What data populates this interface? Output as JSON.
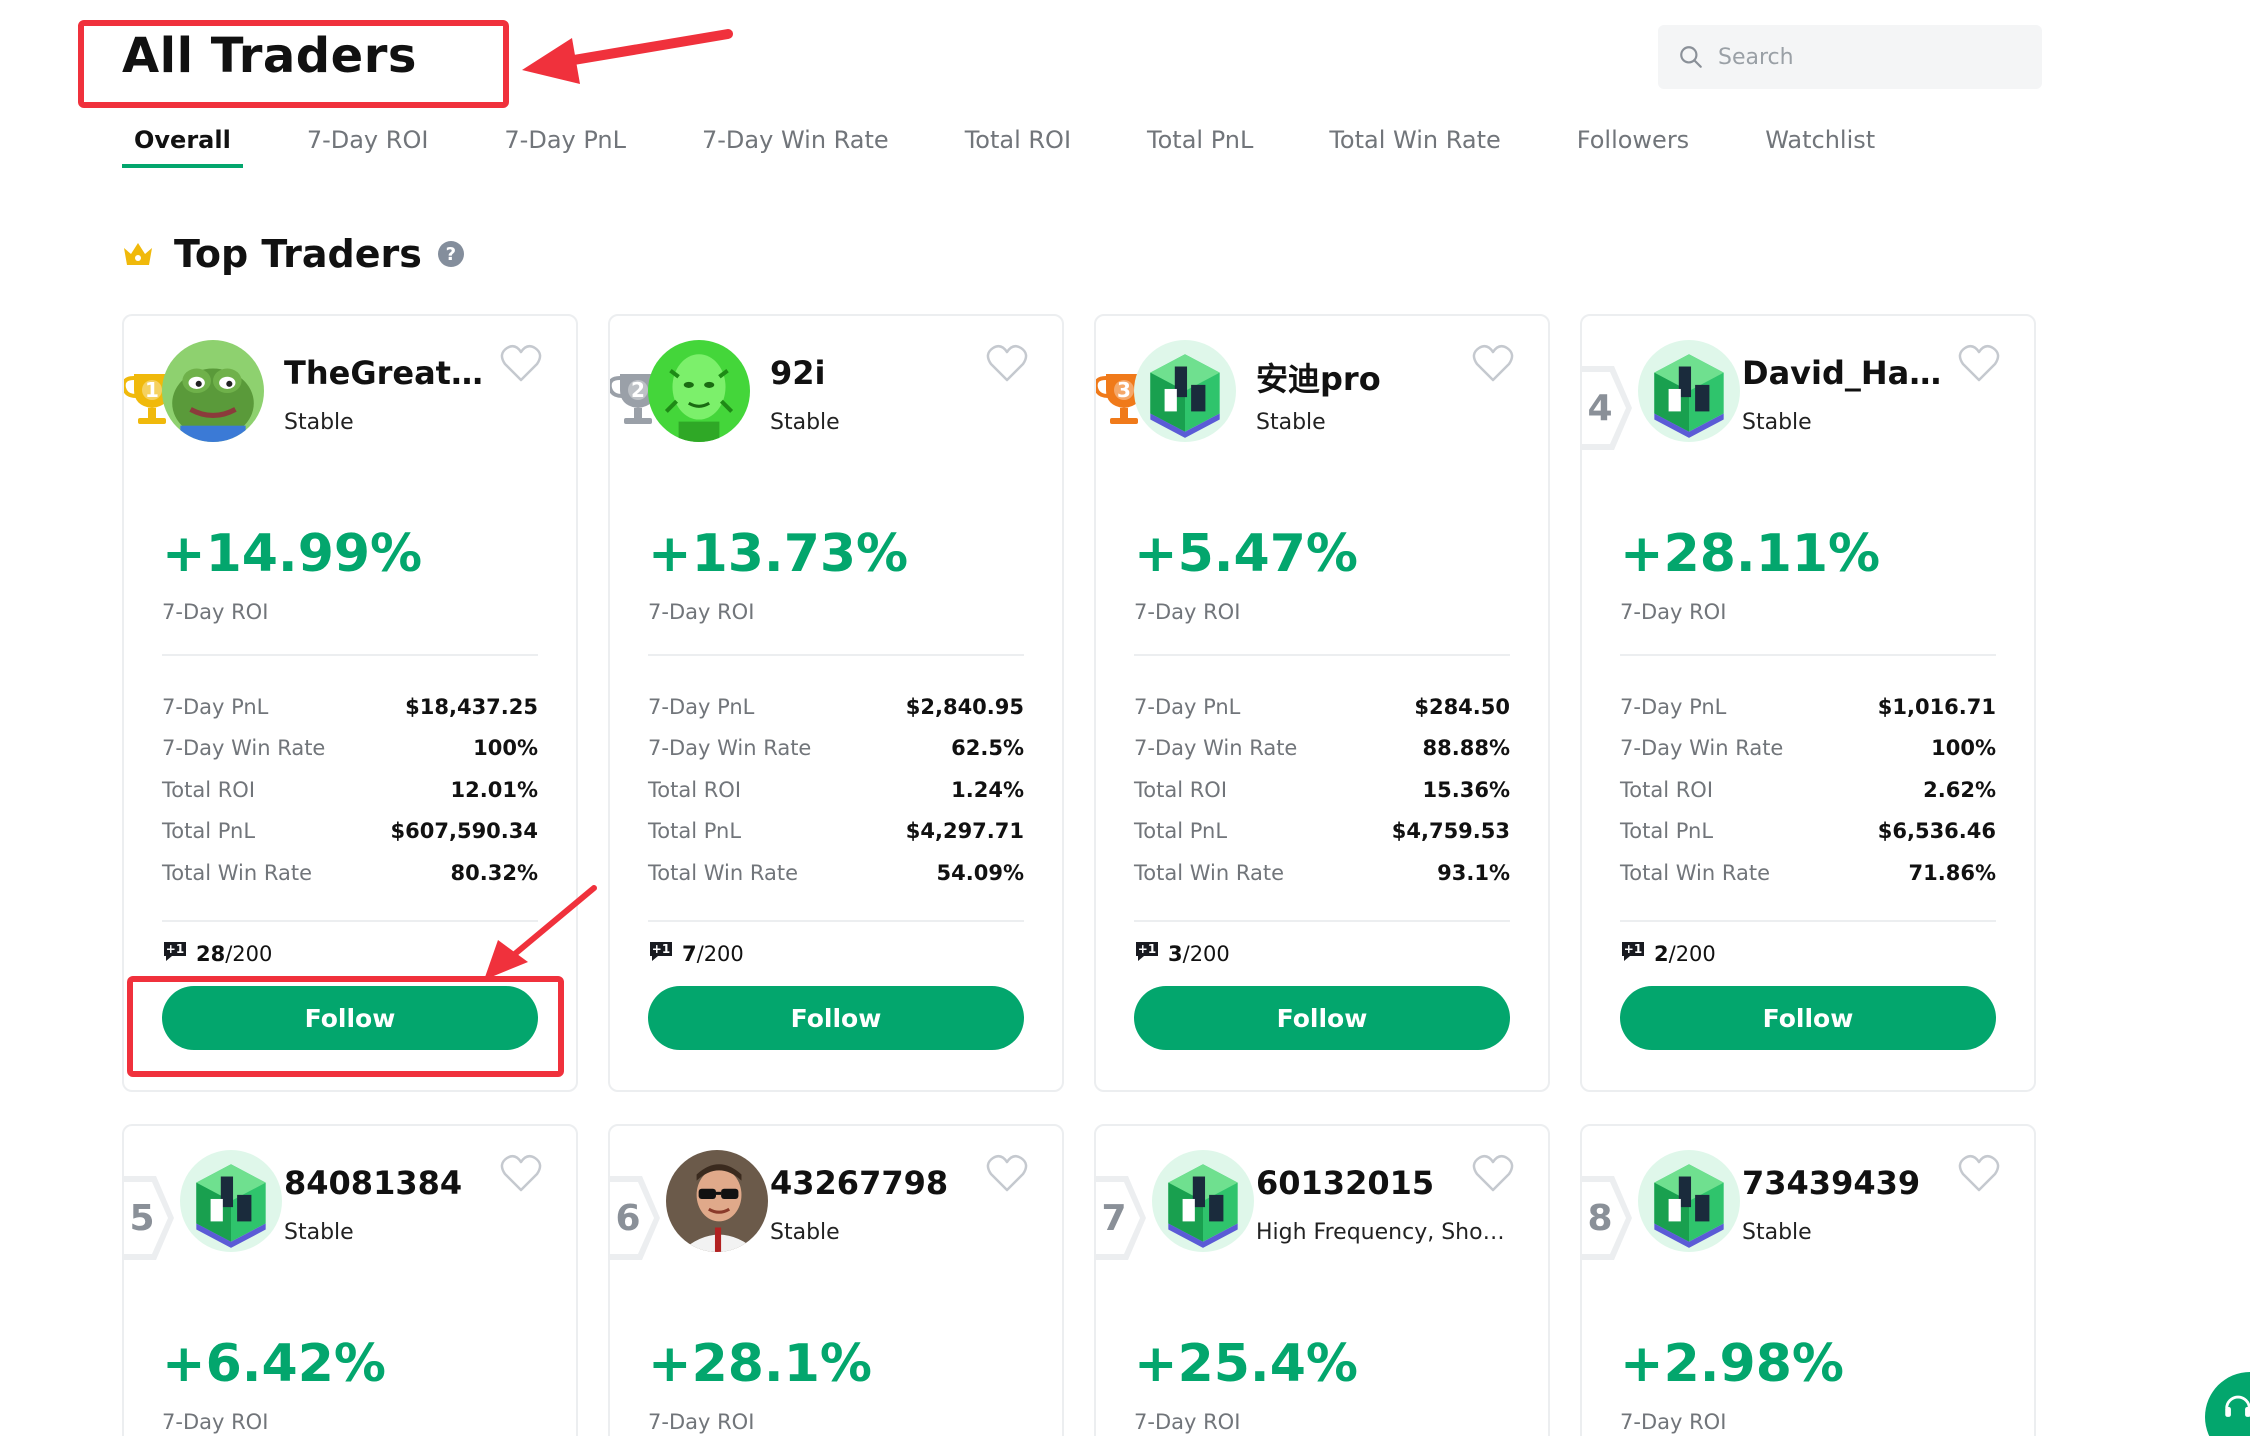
{
  "header": {
    "title": "All Traders",
    "search_placeholder": "Search"
  },
  "tabs": [
    {
      "label": "Overall",
      "active": true
    },
    {
      "label": "7-Day ROI"
    },
    {
      "label": "7-Day PnL"
    },
    {
      "label": "7-Day Win Rate"
    },
    {
      "label": "Total ROI"
    },
    {
      "label": "Total PnL"
    },
    {
      "label": "Total Win Rate"
    },
    {
      "label": "Followers"
    },
    {
      "label": "Watchlist"
    }
  ],
  "section": {
    "title": "Top Traders",
    "help_icon": "?"
  },
  "stat_labels": {
    "roi": "7-Day ROI",
    "pnl7": "7-Day PnL",
    "win7": "7-Day Win Rate",
    "total_roi": "Total ROI",
    "total_pnl": "Total PnL",
    "total_win": "Total Win Rate"
  },
  "follow_label": "Follow",
  "traders": [
    {
      "rank": "1",
      "name": "TheGreatpe...",
      "tag": "Stable",
      "roi": "+14.99%",
      "pnl7": "$18,437.25",
      "win7": "100%",
      "total_roi": "12.01%",
      "total_pnl": "$607,590.34",
      "total_win": "80.32%",
      "slots_used": "28",
      "slots_max": "/200",
      "avatar": "frog"
    },
    {
      "rank": "2",
      "name": "92i",
      "tag": "Stable",
      "roi": "+13.73%",
      "pnl7": "$2,840.95",
      "win7": "62.5%",
      "total_roi": "1.24%",
      "total_pnl": "$4,297.71",
      "total_win": "54.09%",
      "slots_used": "7",
      "slots_max": "/200",
      "avatar": "green-face"
    },
    {
      "rank": "3",
      "name": "安迪pro",
      "tag": "Stable",
      "roi": "+5.47%",
      "pnl7": "$284.50",
      "win7": "88.88%",
      "total_roi": "15.36%",
      "total_pnl": "$4,759.53",
      "total_win": "93.1%",
      "slots_used": "3",
      "slots_max": "/200",
      "avatar": "cube"
    },
    {
      "rank": "4",
      "name": "David_Haan",
      "tag": "Stable",
      "roi": "+28.11%",
      "pnl7": "$1,016.71",
      "win7": "100%",
      "total_roi": "2.62%",
      "total_pnl": "$6,536.46",
      "total_win": "71.86%",
      "slots_used": "2",
      "slots_max": "/200",
      "avatar": "cube"
    },
    {
      "rank": "5",
      "name": "84081384",
      "tag": "Stable",
      "roi": "+6.42%",
      "avatar": "cube"
    },
    {
      "rank": "6",
      "name": "43267798",
      "tag": "Stable",
      "roi": "+28.1%",
      "avatar": "man"
    },
    {
      "rank": "7",
      "name": "60132015",
      "tag": "High Frequency, Short ...",
      "roi": "+25.4%",
      "avatar": "cube"
    },
    {
      "rank": "8",
      "name": "73439439",
      "tag": "Stable",
      "roi": "+2.98%",
      "avatar": "cube"
    }
  ],
  "colors": {
    "accent": "#03a66d",
    "gold": "#f0b90b",
    "silver": "#9aa0a8",
    "bronze": "#f07a1a",
    "annotation": "#f0313c"
  }
}
